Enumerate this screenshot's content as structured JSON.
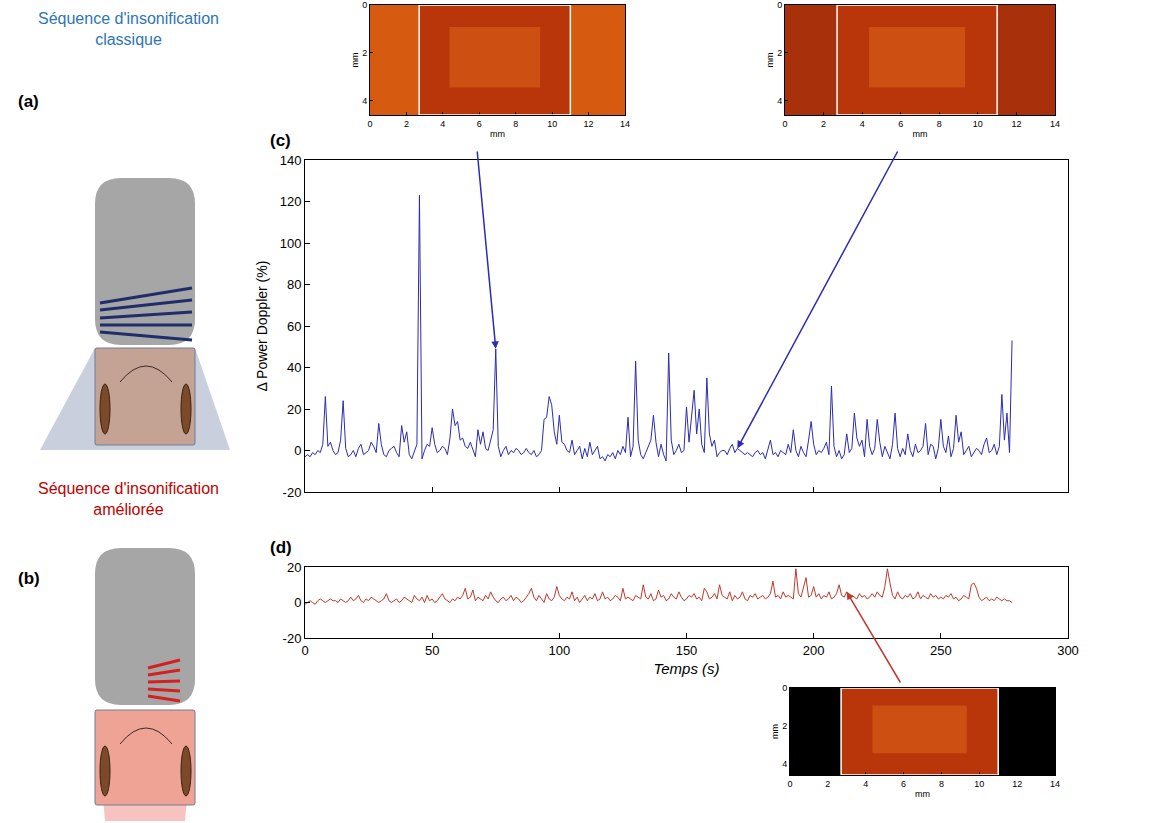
{
  "chart_data": [
    {
      "panel": "(c)",
      "type": "line",
      "y_title": "Δ Power Doppler (%)",
      "x": [
        0,
        1,
        2,
        3,
        4,
        5,
        6,
        7,
        8,
        9,
        10,
        11,
        12,
        13,
        14,
        15,
        16,
        17,
        18,
        19,
        20,
        21,
        22,
        23,
        24,
        25,
        26,
        27,
        28,
        29,
        30,
        31,
        32,
        33,
        34,
        35,
        36,
        37,
        38,
        39,
        40,
        41,
        42,
        43,
        44,
        45,
        46,
        47,
        48,
        49,
        50,
        51,
        52,
        53,
        54,
        55,
        56,
        57,
        58,
        59,
        60,
        61,
        62,
        63,
        64,
        65,
        66,
        67,
        68,
        69,
        70,
        71,
        72,
        73,
        74,
        75,
        76,
        77,
        78,
        79,
        80,
        81,
        82,
        83,
        84,
        85,
        86,
        87,
        88,
        89,
        90,
        91,
        92,
        93,
        94,
        95,
        96,
        97,
        98,
        99,
        100,
        101,
        102,
        103,
        104,
        105,
        106,
        107,
        108,
        109,
        110,
        111,
        112,
        113,
        114,
        115,
        116,
        117,
        118,
        119,
        120,
        121,
        122,
        123,
        124,
        125,
        126,
        127,
        128,
        129,
        130,
        131,
        132,
        133,
        134,
        135,
        136,
        137,
        138,
        139,
        140,
        141,
        142,
        143,
        144,
        145,
        146,
        147,
        148,
        149,
        150,
        151,
        152,
        153,
        154,
        155,
        156,
        157,
        158,
        159,
        160,
        161,
        162,
        163,
        164,
        165,
        166,
        167,
        168,
        169,
        170,
        171,
        172,
        173,
        174,
        175,
        176,
        177,
        178,
        179,
        180,
        181,
        182,
        183,
        184,
        185,
        186,
        187,
        188,
        189,
        190,
        191,
        192,
        193,
        194,
        195,
        196,
        197,
        198,
        199,
        200,
        201,
        202,
        203,
        204,
        205,
        206,
        207,
        208,
        209,
        210,
        211,
        212,
        213,
        214,
        215,
        216,
        217,
        218,
        219,
        220,
        221,
        222,
        223,
        224,
        225,
        226,
        227,
        228,
        229,
        230,
        231,
        232,
        233,
        234,
        235,
        236,
        237,
        238,
        239,
        240,
        241,
        242,
        243,
        244,
        245,
        246,
        247,
        248,
        249,
        250,
        251,
        252,
        253,
        254,
        255,
        256,
        257,
        258,
        259,
        260,
        261,
        262,
        263,
        264,
        265,
        266,
        267,
        268,
        269,
        270,
        271,
        272,
        273,
        274,
        275,
        276,
        277,
        278
      ],
      "series": [
        {
          "color": "#2b2bb5",
          "values": [
            -3,
            -2,
            -3,
            -1,
            -2,
            0,
            -1,
            3,
            26,
            2,
            4,
            0,
            -2,
            -1,
            5,
            24,
            1,
            -3,
            -2,
            0,
            -3,
            1,
            3,
            -2,
            -1,
            0,
            4,
            2,
            -1,
            13,
            3,
            -2,
            -3,
            0,
            1,
            2,
            -1,
            -3,
            12,
            4,
            9,
            -2,
            -4,
            0,
            3,
            123,
            -4,
            0,
            3,
            2,
            11,
            3,
            -1,
            0,
            2,
            1,
            -2,
            6,
            20,
            12,
            14,
            5,
            6,
            2,
            1,
            4,
            0,
            -3,
            10,
            3,
            9,
            1,
            0,
            5,
            10,
            49,
            2,
            -3,
            0,
            2,
            -2,
            0,
            -1,
            1,
            0,
            -2,
            -1,
            1,
            -1,
            -2,
            0,
            -3,
            -2,
            0,
            15,
            16,
            26,
            22,
            9,
            3,
            17,
            4,
            3,
            0,
            -1,
            5,
            -2,
            0,
            2,
            -4,
            1,
            -3,
            4,
            -2,
            0,
            2,
            -4,
            -3,
            -5,
            -2,
            -3,
            -1,
            -4,
            0,
            -2,
            2,
            -1,
            16,
            -3,
            2,
            43,
            5,
            -2,
            -4,
            -1,
            2,
            5,
            17,
            4,
            -3,
            3,
            -2,
            -5,
            47,
            5,
            -2,
            0,
            3,
            -1,
            0,
            21,
            4,
            15,
            29,
            8,
            20,
            3,
            -1,
            35,
            8,
            2,
            5,
            -3,
            -1,
            0,
            0,
            -2,
            1,
            3,
            -1,
            1,
            0,
            -1,
            -2,
            -1,
            -2,
            -3,
            -1,
            0,
            -2,
            -1,
            -4,
            0,
            5,
            -2,
            -1,
            -3,
            0,
            -1,
            -2,
            3,
            -1,
            10,
            0,
            -3,
            2,
            -1,
            -3,
            5,
            14,
            3,
            -2,
            0,
            -1,
            1,
            4,
            -2,
            31,
            2,
            -3,
            0,
            -4,
            -2,
            8,
            -1,
            1,
            18,
            6,
            2,
            5,
            -3,
            15,
            2,
            -2,
            1,
            15,
            4,
            -3,
            2,
            -1,
            -4,
            3,
            18,
            1,
            -3,
            1,
            -2,
            8,
            0,
            -3,
            3,
            -1,
            0,
            2,
            13,
            -2,
            3,
            2,
            -4,
            1,
            15,
            2,
            -1,
            7,
            -3,
            1,
            17,
            4,
            9,
            -2,
            0,
            2,
            -3,
            -1,
            1,
            0,
            -2,
            3,
            6,
            -1,
            0,
            3,
            -2,
            2,
            27,
            5,
            18,
            -1,
            53
          ]
        }
      ],
      "xlim": [
        0,
        300
      ],
      "xticks": [
        0,
        50,
        100,
        150,
        200,
        250,
        300
      ],
      "ylim": [
        -20,
        140
      ],
      "yticks": [
        -20,
        0,
        20,
        40,
        60,
        80,
        100,
        120,
        140
      ],
      "tick_labels": "y",
      "grid": false
    },
    {
      "panel": "(d)",
      "type": "line",
      "x_title": "Temps (s)",
      "x": [
        0,
        1,
        2,
        3,
        4,
        5,
        6,
        7,
        8,
        9,
        10,
        11,
        12,
        13,
        14,
        15,
        16,
        17,
        18,
        19,
        20,
        21,
        22,
        23,
        24,
        25,
        26,
        27,
        28,
        29,
        30,
        31,
        32,
        33,
        34,
        35,
        36,
        37,
        38,
        39,
        40,
        41,
        42,
        43,
        44,
        45,
        46,
        47,
        48,
        49,
        50,
        51,
        52,
        53,
        54,
        55,
        56,
        57,
        58,
        59,
        60,
        61,
        62,
        63,
        64,
        65,
        66,
        67,
        68,
        69,
        70,
        71,
        72,
        73,
        74,
        75,
        76,
        77,
        78,
        79,
        80,
        81,
        82,
        83,
        84,
        85,
        86,
        87,
        88,
        89,
        90,
        91,
        92,
        93,
        94,
        95,
        96,
        97,
        98,
        99,
        100,
        101,
        102,
        103,
        104,
        105,
        106,
        107,
        108,
        109,
        110,
        111,
        112,
        113,
        114,
        115,
        116,
        117,
        118,
        119,
        120,
        121,
        122,
        123,
        124,
        125,
        126,
        127,
        128,
        129,
        130,
        131,
        132,
        133,
        134,
        135,
        136,
        137,
        138,
        139,
        140,
        141,
        142,
        143,
        144,
        145,
        146,
        147,
        148,
        149,
        150,
        151,
        152,
        153,
        154,
        155,
        156,
        157,
        158,
        159,
        160,
        161,
        162,
        163,
        164,
        165,
        166,
        167,
        168,
        169,
        170,
        171,
        172,
        173,
        174,
        175,
        176,
        177,
        178,
        179,
        180,
        181,
        182,
        183,
        184,
        185,
        186,
        187,
        188,
        189,
        190,
        191,
        192,
        193,
        194,
        195,
        196,
        197,
        198,
        199,
        200,
        201,
        202,
        203,
        204,
        205,
        206,
        207,
        208,
        209,
        210,
        211,
        212,
        213,
        214,
        215,
        216,
        217,
        218,
        219,
        220,
        221,
        222,
        223,
        224,
        225,
        226,
        227,
        228,
        229,
        230,
        231,
        232,
        233,
        234,
        235,
        236,
        237,
        238,
        239,
        240,
        241,
        242,
        243,
        244,
        245,
        246,
        247,
        248,
        249,
        250,
        251,
        252,
        253,
        254,
        255,
        256,
        257,
        258,
        259,
        260,
        261,
        262,
        263,
        264,
        265,
        266,
        267,
        268,
        269,
        270,
        271,
        272,
        273,
        274,
        275,
        276,
        277,
        278
      ],
      "series": [
        {
          "color": "#c0392b",
          "values": [
            -1,
            0,
            1,
            0,
            -1,
            1,
            2,
            1,
            0,
            1,
            2,
            1,
            1,
            0,
            2,
            1,
            0,
            1,
            3,
            1,
            2,
            4,
            1,
            0,
            2,
            1,
            3,
            2,
            1,
            0,
            1,
            2,
            5,
            1,
            0,
            1,
            2,
            0,
            1,
            3,
            2,
            1,
            0,
            4,
            2,
            1,
            3,
            0,
            4,
            1,
            2,
            0,
            1,
            3,
            5,
            2,
            1,
            0,
            2,
            1,
            3,
            2,
            4,
            8,
            2,
            3,
            7,
            1,
            3,
            2,
            1,
            4,
            2,
            6,
            3,
            1,
            0,
            2,
            3,
            1,
            2,
            4,
            1,
            3,
            2,
            0,
            1,
            3,
            5,
            8,
            3,
            1,
            4,
            2,
            0,
            5,
            2,
            1,
            3,
            9,
            4,
            2,
            1,
            3,
            2,
            6,
            1,
            3,
            0,
            2,
            4,
            1,
            3,
            2,
            5,
            1,
            2,
            6,
            2,
            3,
            1,
            2,
            4,
            3,
            1,
            8,
            2,
            3,
            2,
            1,
            4,
            3,
            2,
            10,
            3,
            2,
            5,
            1,
            2,
            7,
            3,
            4,
            1,
            2,
            5,
            3,
            2,
            6,
            3,
            1,
            2,
            4,
            3,
            5,
            2,
            3,
            1,
            8,
            6,
            2,
            3,
            5,
            2,
            10,
            4,
            3,
            2,
            6,
            1,
            4,
            2,
            3,
            6,
            2,
            1,
            4,
            3,
            5,
            2,
            3,
            4,
            2,
            3,
            5,
            12,
            3,
            4,
            2,
            6,
            3,
            4,
            3,
            2,
            19,
            5,
            3,
            8,
            14,
            3,
            4,
            9,
            3,
            5,
            2,
            4,
            3,
            6,
            2,
            3,
            5,
            10,
            4,
            3,
            6,
            2,
            4,
            3,
            2,
            5,
            3,
            4,
            2,
            3,
            5,
            3,
            6,
            4,
            3,
            9,
            19,
            11,
            4,
            2,
            6,
            3,
            2,
            4,
            3,
            5,
            2,
            3,
            6,
            2,
            4,
            3,
            2,
            5,
            3,
            4,
            2,
            3,
            2,
            4,
            3,
            5,
            2,
            3,
            1,
            2,
            4,
            3,
            2,
            10,
            11,
            8,
            3,
            1,
            2,
            3,
            1,
            2,
            1,
            3,
            2,
            1,
            2,
            1,
            1,
            0
          ]
        }
      ],
      "xlim": [
        0,
        300
      ],
      "xticks": [
        0,
        50,
        100,
        150,
        200,
        250,
        300
      ],
      "ylim": [
        -20,
        20
      ],
      "yticks": [
        -20,
        0,
        20
      ],
      "grid": false
    },
    {
      "type": "image",
      "x_title": "mm",
      "y_title": "mm",
      "xlim": [
        0,
        14
      ],
      "xticks": [
        0,
        2,
        4,
        6,
        8,
        10,
        12,
        14
      ],
      "ylim": [
        4.6,
        0
      ],
      "yticks": [
        0,
        2,
        4
      ],
      "roi": [
        2.7,
        11
      ],
      "arrow_to": {
        "panel": "(c)",
        "time": 75
      }
    },
    {
      "type": "image",
      "x_title": "mm",
      "y_title": "mm",
      "xlim": [
        0,
        14
      ],
      "xticks": [
        0,
        2,
        4,
        6,
        8,
        10,
        12,
        14
      ],
      "ylim": [
        4.6,
        0
      ],
      "yticks": [
        0,
        2,
        4
      ],
      "roi": [
        2.7,
        11
      ],
      "arrow_to": {
        "panel": "(c)",
        "time": 170
      }
    },
    {
      "type": "image",
      "x_title": "mm",
      "y_title": "mm",
      "xlim": [
        0,
        14
      ],
      "xticks": [
        0,
        2,
        4,
        6,
        8,
        10,
        12,
        14
      ],
      "ylim": [
        4.6,
        0
      ],
      "yticks": [
        0,
        2,
        4
      ],
      "roi": [
        2.7,
        11
      ],
      "arrow_to": {
        "panel": "(d)",
        "time": 213
      }
    }
  ],
  "diagrams": [
    {
      "panel": "(a)",
      "title": "Séquence d'insonification classique",
      "color": "#2e75b6"
    },
    {
      "panel": "(b)",
      "title": "Séquence d'insonification améliorée",
      "color": "#c00000"
    }
  ]
}
